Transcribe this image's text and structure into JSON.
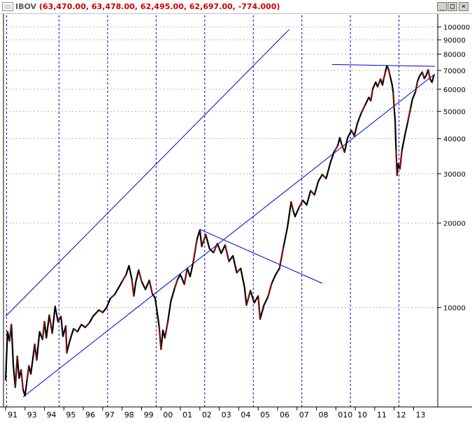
{
  "window": {
    "symbol": "IBOV",
    "values": "(63,470.00, 63,478.00, 62,495.00, 62,697.00, -774.000)",
    "buttons": {
      "minimize": "_",
      "maximize": "□",
      "close": "×"
    }
  },
  "chart_data": {
    "type": "line",
    "y_scale": "log",
    "ylim": [
      4500,
      110000
    ],
    "xlim": [
      1991.0,
      2013.1
    ],
    "y_ticks": [
      {
        "label": "10000",
        "value": 10000
      },
      {
        "label": "20000",
        "value": 20000
      },
      {
        "label": "30000",
        "value": 30000
      },
      {
        "label": "40000",
        "value": 40000
      },
      {
        "label": "50000",
        "value": 50000
      },
      {
        "label": "60000",
        "value": 60000
      },
      {
        "label": "70000",
        "value": 70000
      },
      {
        "label": "80000",
        "value": 80000
      },
      {
        "label": "90000",
        "value": 90000
      },
      {
        "label": "100000",
        "value": 100000
      }
    ],
    "x_ticks": [
      {
        "label": "91",
        "year": 1991
      },
      {
        "label": "93",
        "year": 1992
      },
      {
        "label": "94",
        "year": 1993
      },
      {
        "label": "95",
        "year": 1994
      },
      {
        "label": "96",
        "year": 1995
      },
      {
        "label": "97",
        "year": 1996
      },
      {
        "label": "98",
        "year": 1997
      },
      {
        "label": "99",
        "year": 1998
      },
      {
        "label": "00",
        "year": 1999
      },
      {
        "label": "01",
        "year": 2000
      },
      {
        "label": "02",
        "year": 2001
      },
      {
        "label": "03",
        "year": 2002
      },
      {
        "label": "04",
        "year": 2003
      },
      {
        "label": "05",
        "year": 2004
      },
      {
        "label": "06",
        "year": 2005
      },
      {
        "label": "07",
        "year": 2006
      },
      {
        "label": "08",
        "year": 2007
      },
      {
        "label": "010",
        "year": 2008
      },
      {
        "label": "10",
        "year": 2009
      },
      {
        "label": "11",
        "year": 2010
      },
      {
        "label": "12",
        "year": 2011
      },
      {
        "label": "13",
        "year": 2012
      }
    ],
    "vertical_dashed_lines_at_year": [
      1991.05,
      1993.75,
      1996.25,
      1998.75,
      2001.25,
      2003.75,
      2006.25,
      2008.75,
      2011.25
    ],
    "series": [
      {
        "style": "price",
        "color": "#000000",
        "accent_color": "#cc0000",
        "points": [
          [
            1991.0,
            5500
          ],
          [
            1991.1,
            8200
          ],
          [
            1991.2,
            7600
          ],
          [
            1991.3,
            8700
          ],
          [
            1991.4,
            6200
          ],
          [
            1991.5,
            5200
          ],
          [
            1991.6,
            6700
          ],
          [
            1991.7,
            5600
          ],
          [
            1991.8,
            6000
          ],
          [
            1991.9,
            5100
          ],
          [
            1992.0,
            4850
          ],
          [
            1992.1,
            5500
          ],
          [
            1992.2,
            6200
          ],
          [
            1992.3,
            5800
          ],
          [
            1992.5,
            7400
          ],
          [
            1992.6,
            6500
          ],
          [
            1992.75,
            8200
          ],
          [
            1992.9,
            7700
          ],
          [
            1993.0,
            8900
          ],
          [
            1993.1,
            7800
          ],
          [
            1993.25,
            9400
          ],
          [
            1993.4,
            8100
          ],
          [
            1993.55,
            10100
          ],
          [
            1993.7,
            8900
          ],
          [
            1993.85,
            9300
          ],
          [
            1993.95,
            7900
          ],
          [
            1994.1,
            8600
          ],
          [
            1994.15,
            6900
          ],
          [
            1994.3,
            7600
          ],
          [
            1994.5,
            8400
          ],
          [
            1994.7,
            8200
          ],
          [
            1994.9,
            8700
          ],
          [
            1995.1,
            8500
          ],
          [
            1995.3,
            8800
          ],
          [
            1995.5,
            9300
          ],
          [
            1995.8,
            9800
          ],
          [
            1996.0,
            9600
          ],
          [
            1996.2,
            10000
          ],
          [
            1996.4,
            10800
          ],
          [
            1996.6,
            11100
          ],
          [
            1996.8,
            11700
          ],
          [
            1997.0,
            12400
          ],
          [
            1997.2,
            13100
          ],
          [
            1997.35,
            14100
          ],
          [
            1997.5,
            12600
          ],
          [
            1997.6,
            11000
          ],
          [
            1997.7,
            12300
          ],
          [
            1997.85,
            13600
          ],
          [
            1998.0,
            12400
          ],
          [
            1998.2,
            11600
          ],
          [
            1998.4,
            12500
          ],
          [
            1998.55,
            11200
          ],
          [
            1998.7,
            10800
          ],
          [
            1998.9,
            8600
          ],
          [
            1999.0,
            7100
          ],
          [
            1999.1,
            8300
          ],
          [
            1999.2,
            7800
          ],
          [
            1999.35,
            8900
          ],
          [
            1999.5,
            10500
          ],
          [
            1999.7,
            11700
          ],
          [
            1999.85,
            12600
          ],
          [
            2000.0,
            13100
          ],
          [
            2000.2,
            12100
          ],
          [
            2000.35,
            13800
          ],
          [
            2000.5,
            12900
          ],
          [
            2000.65,
            14400
          ],
          [
            2000.85,
            17500
          ],
          [
            2001.0,
            18900
          ],
          [
            2001.1,
            16500
          ],
          [
            2001.3,
            18200
          ],
          [
            2001.5,
            16200
          ],
          [
            2001.7,
            15700
          ],
          [
            2001.9,
            16900
          ],
          [
            2002.1,
            15600
          ],
          [
            2002.3,
            16700
          ],
          [
            2002.5,
            14600
          ],
          [
            2002.7,
            15300
          ],
          [
            2002.9,
            13300
          ],
          [
            2003.1,
            13800
          ],
          [
            2003.3,
            11800
          ],
          [
            2003.4,
            10200
          ],
          [
            2003.6,
            11500
          ],
          [
            2003.8,
            10400
          ],
          [
            2004.0,
            11000
          ],
          [
            2004.1,
            9100
          ],
          [
            2004.3,
            10200
          ],
          [
            2004.5,
            10900
          ],
          [
            2004.7,
            12200
          ],
          [
            2004.9,
            13100
          ],
          [
            2005.1,
            13800
          ],
          [
            2005.3,
            16400
          ],
          [
            2005.5,
            19200
          ],
          [
            2005.7,
            23800
          ],
          [
            2005.8,
            22200
          ],
          [
            2005.9,
            21100
          ],
          [
            2006.1,
            22700
          ],
          [
            2006.3,
            24100
          ],
          [
            2006.5,
            23200
          ],
          [
            2006.7,
            26100
          ],
          [
            2006.9,
            25200
          ],
          [
            2007.1,
            28200
          ],
          [
            2007.3,
            29800
          ],
          [
            2007.5,
            28800
          ],
          [
            2007.7,
            32500
          ],
          [
            2007.9,
            35800
          ],
          [
            2008.1,
            37800
          ],
          [
            2008.2,
            40300
          ],
          [
            2008.3,
            38200
          ],
          [
            2008.45,
            35800
          ],
          [
            2008.6,
            40200
          ],
          [
            2008.8,
            42800
          ],
          [
            2008.95,
            40900
          ],
          [
            2009.1,
            45200
          ],
          [
            2009.3,
            49200
          ],
          [
            2009.5,
            52600
          ],
          [
            2009.7,
            56100
          ],
          [
            2009.8,
            54600
          ],
          [
            2009.9,
            60200
          ],
          [
            2010.05,
            63600
          ],
          [
            2010.15,
            61200
          ],
          [
            2010.3,
            65200
          ],
          [
            2010.4,
            62100
          ],
          [
            2010.45,
            64800
          ],
          [
            2010.55,
            69200
          ],
          [
            2010.62,
            72600
          ],
          [
            2010.7,
            71200
          ],
          [
            2010.8,
            66500
          ],
          [
            2010.9,
            62000
          ],
          [
            2010.95,
            58500
          ],
          [
            2011.0,
            51200
          ],
          [
            2011.05,
            46800
          ],
          [
            2011.1,
            36500
          ],
          [
            2011.15,
            29600
          ],
          [
            2011.2,
            32500
          ],
          [
            2011.3,
            31200
          ],
          [
            2011.4,
            36300
          ],
          [
            2011.55,
            41000
          ],
          [
            2011.7,
            45800
          ],
          [
            2011.85,
            51500
          ],
          [
            2011.95,
            55500
          ],
          [
            2012.1,
            58700
          ],
          [
            2012.2,
            63900
          ],
          [
            2012.3,
            66700
          ],
          [
            2012.45,
            69000
          ],
          [
            2012.55,
            65500
          ],
          [
            2012.65,
            67200
          ],
          [
            2012.75,
            70300
          ],
          [
            2012.85,
            65200
          ],
          [
            2012.95,
            63500
          ],
          [
            2013.05,
            67500
          ]
        ]
      }
    ],
    "trendlines": [
      {
        "from": [
          1991.0,
          9300
        ],
        "to": [
          2005.6,
          98000
        ]
      },
      {
        "from": [
          1991.9,
          4800
        ],
        "to": [
          2013.1,
          68000
        ]
      },
      {
        "from": [
          2001.0,
          19000
        ],
        "to": [
          2007.3,
          12200
        ]
      },
      {
        "from": [
          2007.8,
          73500
        ],
        "to": [
          2013.1,
          72400
        ]
      }
    ]
  }
}
